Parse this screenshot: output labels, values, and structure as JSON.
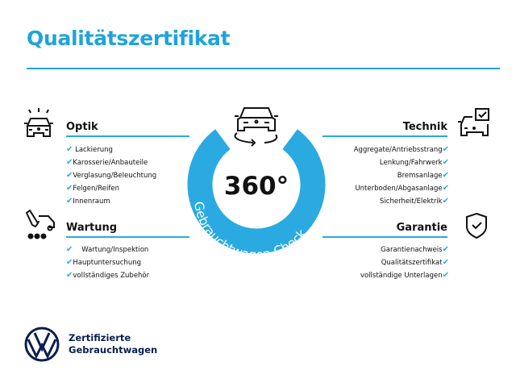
{
  "title": "Qualitätszertifikat",
  "center": {
    "big": "360°",
    "ring_text": "Gebrauchtwagen-Check"
  },
  "colors": {
    "accent": "#2aaae1",
    "title": "#1fa3dc",
    "brand": "#0b1f4f"
  },
  "sections": {
    "optik": {
      "title": "Optik",
      "icon": "car-lights-icon",
      "items": [
        "Lackierung",
        "Karosserie/Anbauteile",
        "Verglasung/Beleuchtung",
        "Felgen/Reifen",
        "Innenraum"
      ]
    },
    "wartung": {
      "title": "Wartung",
      "icon": "service-van-icon",
      "items": [
        "Wartung/Inspektion",
        "Hauptuntersuchung",
        "vollständiges Zubehör"
      ]
    },
    "technik": {
      "title": "Technik",
      "icon": "car-checkbox-icon",
      "items": [
        "Aggregate/Antriebsstrang",
        "Lenkung/Fahrwerk",
        "Bremsanlage",
        "Unterboden/Abgasanlage",
        "Sicherheit/Elektrik"
      ]
    },
    "garantie": {
      "title": "Garantie",
      "icon": "shield-check-icon",
      "items": [
        "Garantienachweis",
        "Qualitätszertifikat",
        "vollständige Unterlagen"
      ]
    }
  },
  "footer": {
    "line1": "Zertifizierte",
    "line2": "Gebrauchtwagen",
    "logo": "vw-logo"
  }
}
